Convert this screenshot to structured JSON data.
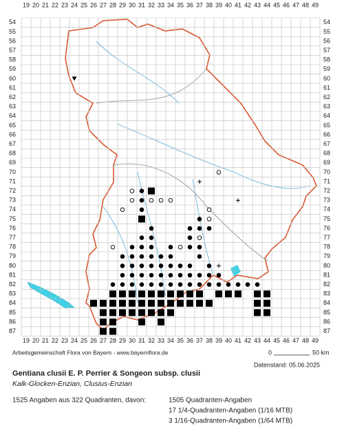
{
  "map": {
    "col_labels": [
      19,
      20,
      21,
      22,
      23,
      24,
      25,
      26,
      27,
      28,
      29,
      30,
      31,
      32,
      33,
      34,
      35,
      36,
      37,
      38,
      39,
      40,
      41,
      42,
      43,
      44,
      45,
      46,
      47,
      48,
      49
    ],
    "row_labels": [
      54,
      55,
      56,
      57,
      58,
      59,
      60,
      61,
      62,
      63,
      64,
      65,
      66,
      67,
      68,
      69,
      70,
      71,
      72,
      73,
      74,
      75,
      76,
      77,
      78,
      79,
      80,
      81,
      82,
      83,
      84,
      85,
      86,
      87
    ],
    "records": [
      {
        "row": 60,
        "symbol": "triangle",
        "cols": [
          24
        ]
      },
      {
        "row": 70,
        "symbol": "circle",
        "cols": [
          39
        ]
      },
      {
        "row": 71,
        "symbol": "plus",
        "cols": [
          37
        ]
      },
      {
        "row": 72,
        "symbol": "circle",
        "cols": [
          30
        ]
      },
      {
        "row": 72,
        "symbol": "dot",
        "cols": [
          31
        ]
      },
      {
        "row": 72,
        "symbol": "square",
        "cols": [
          32
        ]
      },
      {
        "row": 73,
        "symbol": "circle",
        "cols": [
          30,
          32,
          33,
          34
        ]
      },
      {
        "row": 73,
        "symbol": "dot",
        "cols": [
          31
        ]
      },
      {
        "row": 73,
        "symbol": "plus",
        "cols": [
          41
        ]
      },
      {
        "row": 74,
        "symbol": "circle",
        "cols": [
          29,
          38
        ]
      },
      {
        "row": 74,
        "symbol": "dot",
        "cols": [
          31
        ]
      },
      {
        "row": 75,
        "symbol": "square",
        "cols": [
          31
        ]
      },
      {
        "row": 75,
        "symbol": "dot",
        "cols": [
          37
        ]
      },
      {
        "row": 75,
        "symbol": "circle",
        "cols": [
          38
        ]
      },
      {
        "row": 76,
        "symbol": "dot",
        "cols": [
          32,
          36,
          37,
          38
        ]
      },
      {
        "row": 77,
        "symbol": "dot",
        "cols": [
          31,
          32,
          36
        ]
      },
      {
        "row": 77,
        "symbol": "circle",
        "cols": [
          37
        ]
      },
      {
        "row": 78,
        "symbol": "circle",
        "cols": [
          28,
          35
        ]
      },
      {
        "row": 78,
        "symbol": "dot",
        "cols": [
          30,
          31,
          32,
          34,
          36,
          37
        ]
      },
      {
        "row": 79,
        "symbol": "dot",
        "cols": [
          29,
          30,
          31,
          32,
          33,
          34,
          37
        ]
      },
      {
        "row": 80,
        "symbol": "dot",
        "cols": [
          29,
          30,
          31,
          32,
          33,
          34,
          35,
          36,
          38
        ]
      },
      {
        "row": 80,
        "symbol": "plus",
        "cols": [
          39
        ]
      },
      {
        "row": 81,
        "symbol": "dot",
        "cols": [
          29,
          30,
          31,
          32,
          33,
          34,
          35,
          36,
          37,
          38,
          39
        ]
      },
      {
        "row": 82,
        "symbol": "dot",
        "cols": [
          28,
          29,
          30,
          31,
          32,
          33,
          34,
          35,
          36,
          37,
          38,
          39,
          40,
          41,
          42,
          43
        ]
      },
      {
        "row": 83,
        "symbol": "square",
        "cols": [
          28,
          29,
          30,
          31,
          32,
          33,
          34,
          35,
          36,
          37,
          39,
          40,
          41,
          43,
          44
        ]
      },
      {
        "row": 84,
        "symbol": "square",
        "cols": [
          26,
          27,
          28,
          29,
          30,
          31,
          32,
          33,
          34,
          35,
          36,
          37,
          38,
          43,
          44
        ]
      },
      {
        "row": 85,
        "symbol": "square",
        "cols": [
          27,
          28,
          29,
          30,
          31,
          32,
          33,
          34,
          43,
          44
        ]
      },
      {
        "row": 86,
        "symbol": "square",
        "cols": [
          27,
          28,
          31,
          33
        ]
      },
      {
        "row": 87,
        "symbol": "square",
        "cols": [
          27,
          28
        ]
      }
    ]
  },
  "footer": {
    "credit": "Arbeitsgemeinschaft Flora von Bayern - www.bayernflora.de",
    "scale_start": "0",
    "scale_end": "50 km",
    "date": "Datenstand: 05.06.2025",
    "title": "Gentiana clusii E. P. Perrier & Songeon subsp. clusii",
    "common_names": "Kalk-Glocken-Enzian, Clusius-Enzian",
    "summary": "1525 Angaben aus 322 Quadranten, davon:",
    "counts": [
      "1505 Quadranten-Angaben",
      "17 1/4-Quadranten-Angaben (1/16 MTB)",
      "3 1/16-Quadranten-Angaben (1/64 MTB)"
    ]
  }
}
